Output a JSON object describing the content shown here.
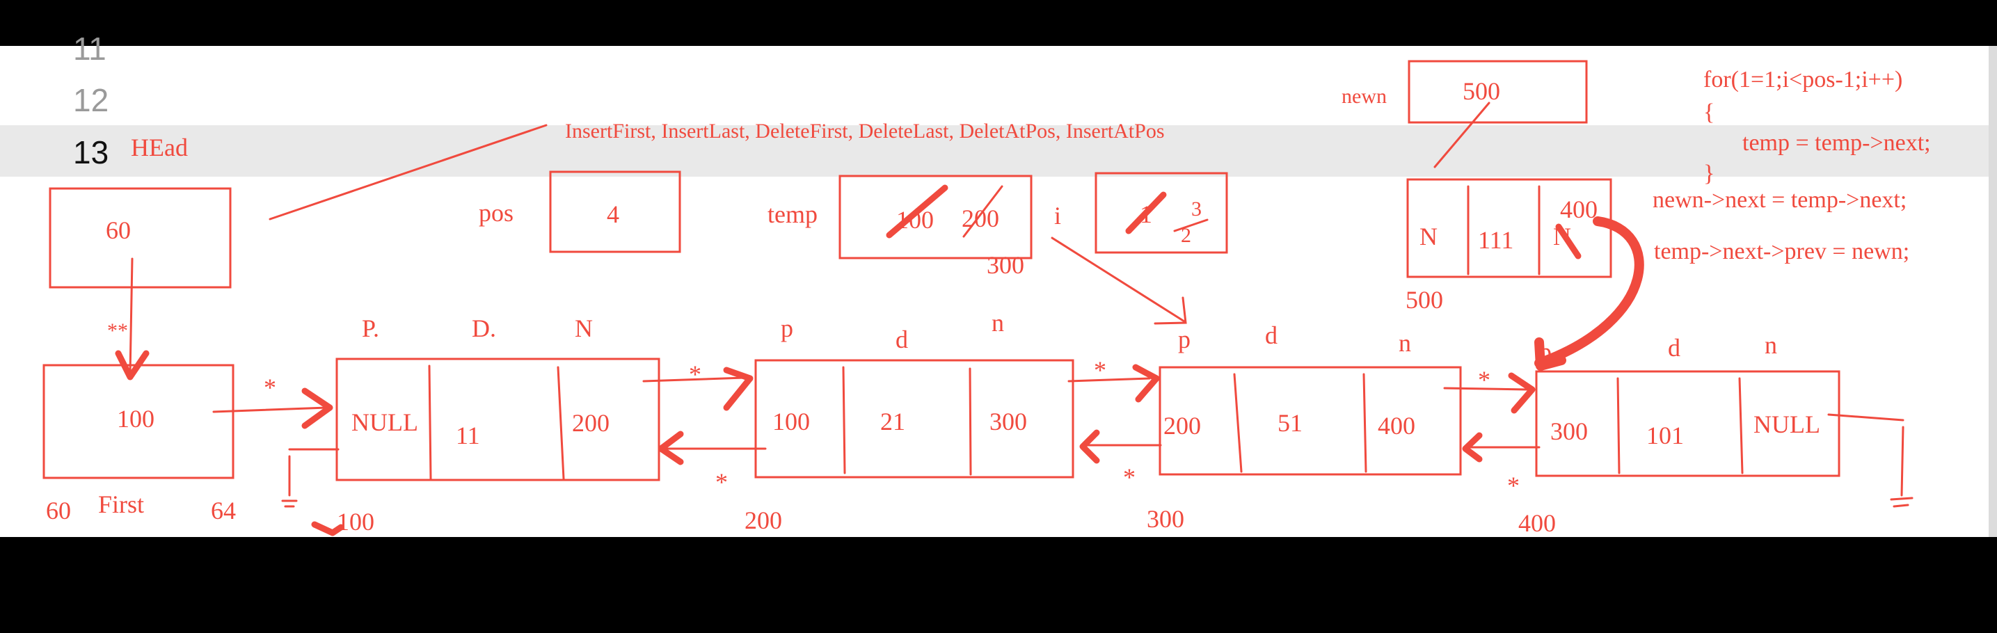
{
  "editor": {
    "line_numbers": [
      "11",
      "12",
      "13"
    ],
    "heading": "HEad",
    "operations": "InsertFirst, InsertLast, DeleteFirst, DeleteLast, DeletAtPos, InsertAtPos"
  },
  "head_box": {
    "value": "60"
  },
  "pos": {
    "label": "pos",
    "value": "4"
  },
  "temp": {
    "label": "temp",
    "old1": "100",
    "old2": "200",
    "current": "300"
  },
  "counter": {
    "label": "i",
    "old1": "1",
    "current": "3",
    "old2": "2"
  },
  "newn": {
    "label": "newn",
    "value": "500"
  },
  "new_node": {
    "prev": "N",
    "data": "111",
    "next": "N",
    "next_new": "400",
    "address": "500"
  },
  "code": [
    "for(1=1;i<pos-1;i++)",
    "{",
    "temp = temp->next;",
    "}",
    "newn->next = temp->next;",
    "temp->next->prev =  newn;"
  ],
  "first": {
    "value": "100",
    "left": "60",
    "label": "First",
    "right": "64",
    "stars": "**",
    "arrow_star": "*"
  },
  "nodes": [
    {
      "h_prev": "P.",
      "h_data": "D.",
      "h_next": "N",
      "prev": "NULL",
      "data": "11",
      "next": "200",
      "address": "100",
      "star_top": "*",
      "star_bottom": "*"
    },
    {
      "h_prev": "p",
      "h_data": "d",
      "h_next": "n",
      "prev": "100",
      "data": "21",
      "next": "300",
      "address": "200",
      "star_top": "*",
      "star_bottom": "*"
    },
    {
      "h_prev": "p",
      "h_data": "d",
      "h_next": "n",
      "prev": "200",
      "data": "51",
      "next": "400",
      "address": "300",
      "star_top": "*",
      "star_bottom": "*"
    },
    {
      "h_prev": "p",
      "h_data": "d",
      "h_next": "n",
      "prev": "300",
      "data": "101",
      "next": "NULL",
      "address": "400"
    }
  ]
}
